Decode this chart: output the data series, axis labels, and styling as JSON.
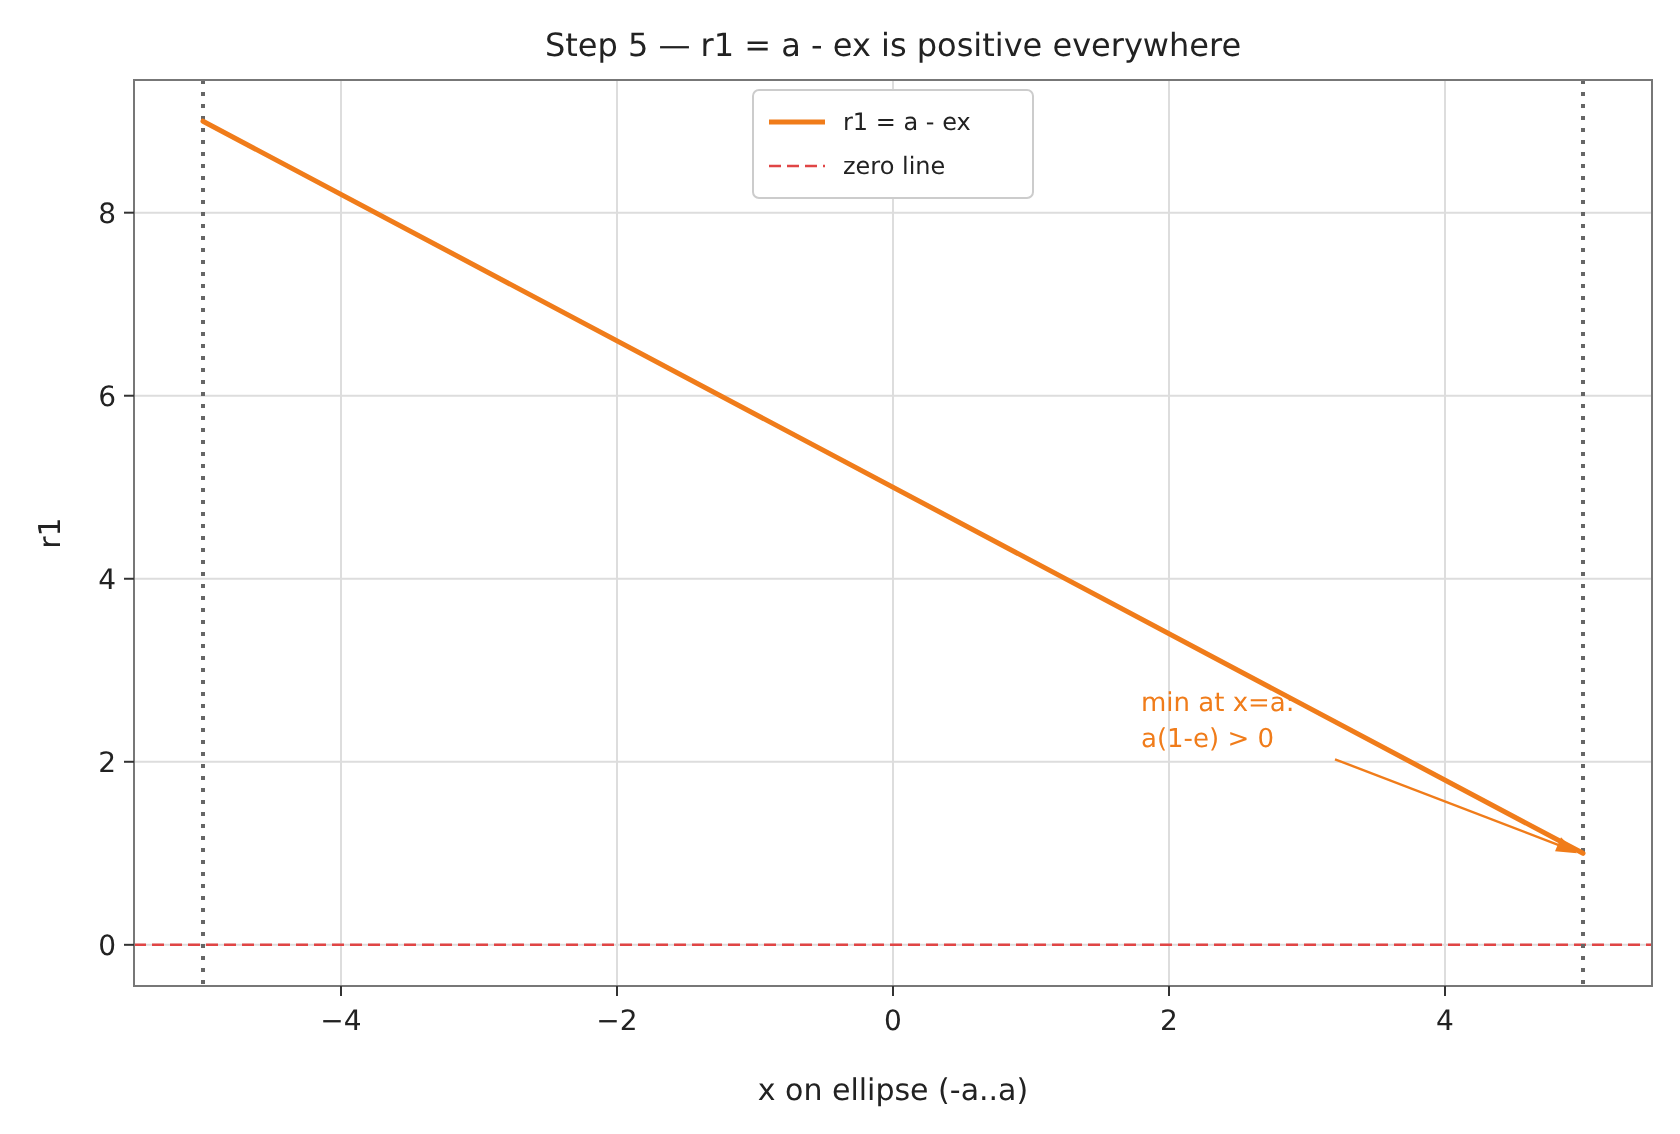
{
  "chart_data": {
    "type": "line",
    "title": "Step 5 — r1 = a - ex is positive everywhere",
    "xlabel": "x on ellipse (-a..a)",
    "ylabel": "r1",
    "xlim": [
      -5.5,
      5.5
    ],
    "ylim": [
      -0.45,
      9.45
    ],
    "xticks": [
      {
        "value": -4,
        "label": "−4"
      },
      {
        "value": -2,
        "label": "−2"
      },
      0,
      2,
      4
    ],
    "yticks": [
      0,
      2,
      4,
      6,
      8
    ],
    "grid": true,
    "legend": "top",
    "line_style": "solid",
    "series": [
      {
        "name": "r1 = a - ex",
        "color": "#f07c1a",
        "x": [
          -5,
          5
        ],
        "values": [
          9,
          1
        ]
      }
    ],
    "ref_lines": [
      {
        "axis": "y",
        "value": 0,
        "label": "zero line",
        "color": "#e04545",
        "line_style": "dashed"
      },
      {
        "axis": "x",
        "value": -5,
        "color": "#666666",
        "line_style": "dotted"
      },
      {
        "axis": "x",
        "value": 5,
        "color": "#666666",
        "line_style": "dotted"
      }
    ],
    "annotations": [
      "min at x=a:\na(1-e) > 0"
    ]
  }
}
